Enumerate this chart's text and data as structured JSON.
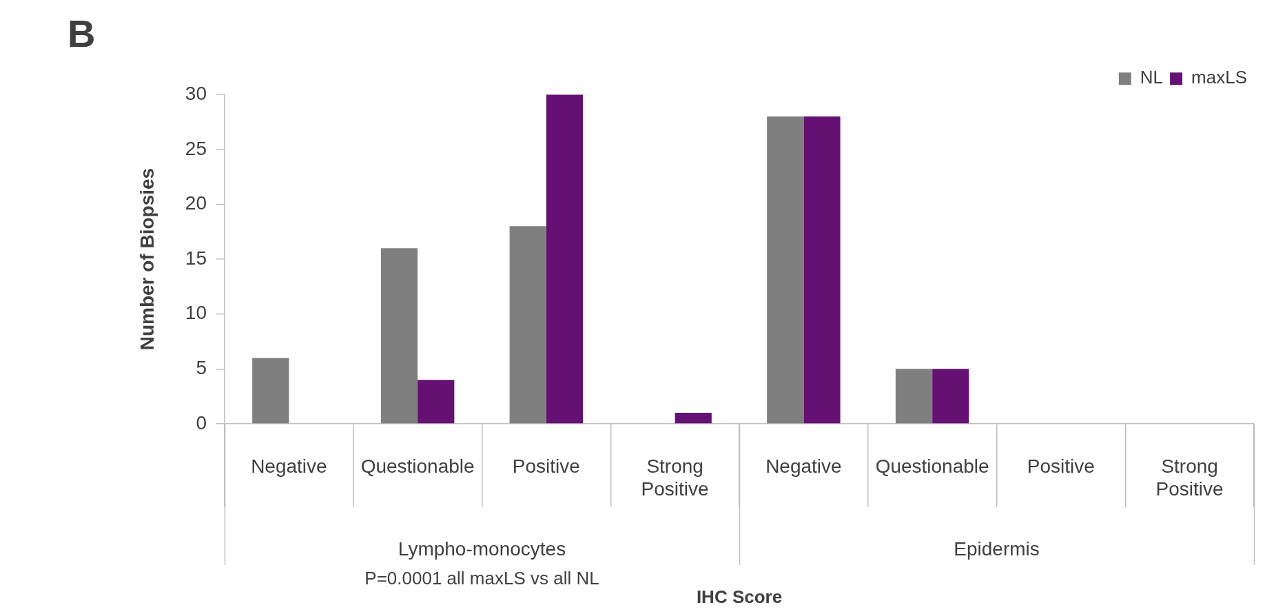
{
  "chart_data": {
    "type": "bar",
    "title": "B",
    "xlabel": "IHC Score",
    "ylabel": "Number of Biopsies",
    "categories": [
      "Negative",
      "Questionable",
      "Positive",
      "Strong Positive",
      "Negative",
      "Questionable",
      "Positive",
      "Strong Positive"
    ],
    "series": [
      {
        "name": "NL",
        "color": "#7f7f7f",
        "values": [
          6,
          16,
          18,
          0,
          28,
          5,
          0,
          0
        ]
      },
      {
        "name": "maxLS",
        "color": "#651173",
        "values": [
          0,
          4,
          30,
          1,
          28,
          5,
          0,
          0
        ]
      }
    ],
    "ylim": [
      0,
      30
    ],
    "yticks": [
      0,
      5,
      10,
      15,
      20,
      25,
      30
    ],
    "legend": "top right",
    "annotations": [
      "Lympho-monocytes",
      "Epidermis",
      "P=0.0001 all maxLS vs all NL"
    ]
  }
}
